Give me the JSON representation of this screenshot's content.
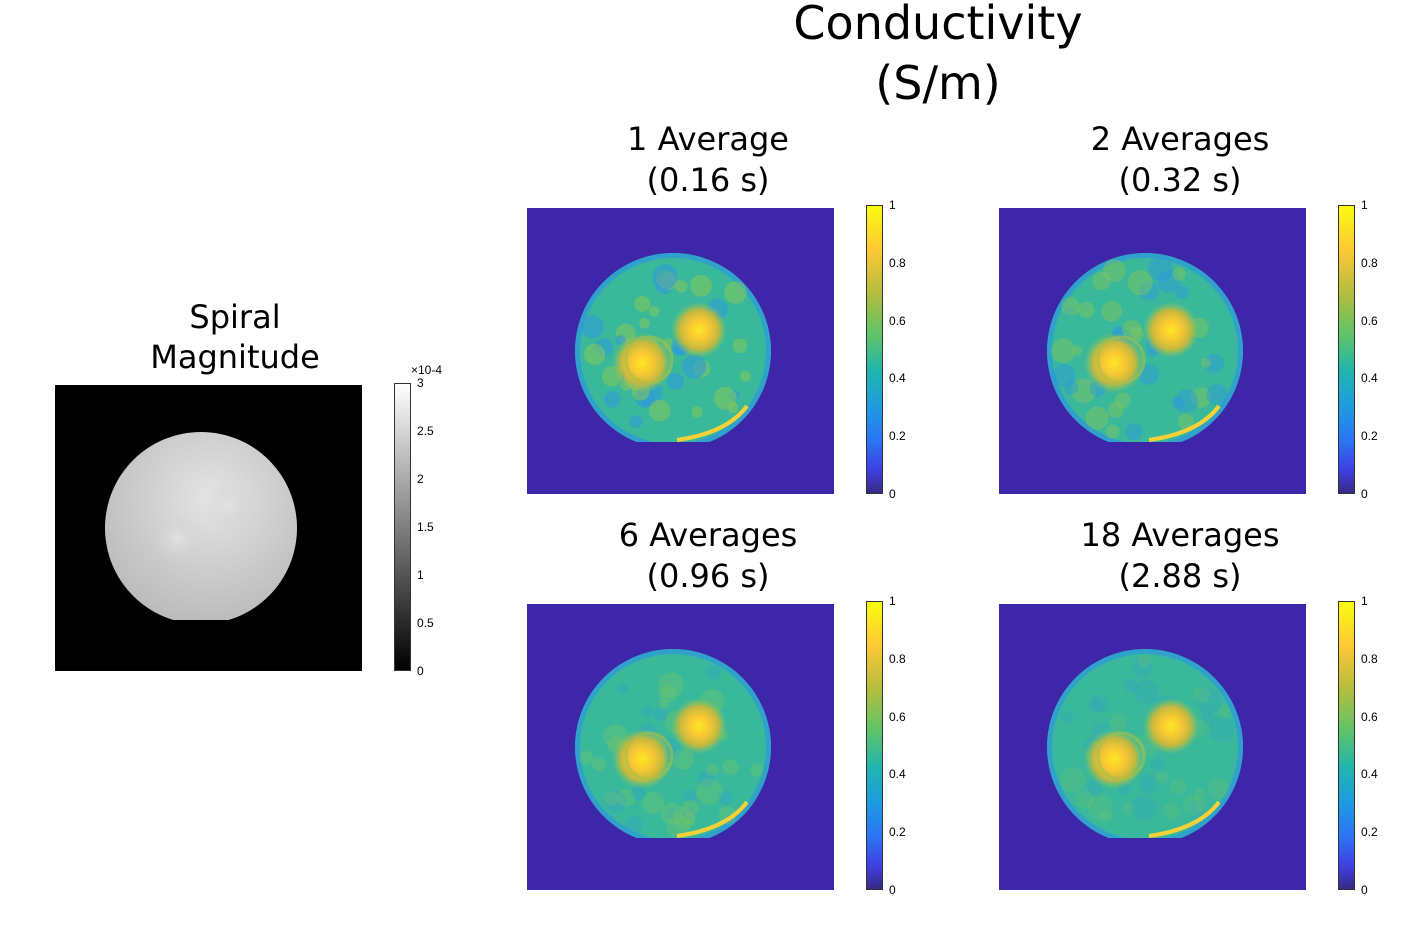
{
  "figure": {
    "title_line1": "Conductivity",
    "title_line2": "(S/m)"
  },
  "magnitude": {
    "title_line1": "Spiral",
    "title_line2": "Magnitude",
    "colormap": "gray",
    "colorbar_exponent": "×10-4",
    "colorbar_ticks": [
      "0",
      "0.5",
      "1",
      "1.5",
      "2",
      "2.5",
      "3"
    ]
  },
  "conductivity_colormap": "parula",
  "conductivity_colorbar_ticks": [
    "0",
    "0.2",
    "0.4",
    "0.6",
    "0.8",
    "1"
  ],
  "panels": [
    {
      "title_line1": "1 Average",
      "title_line2": "(0.16 s)"
    },
    {
      "title_line1": "2 Averages",
      "title_line2": "(0.32 s)"
    },
    {
      "title_line1": "6 Averages",
      "title_line2": "(0.96 s)"
    },
    {
      "title_line1": "18 Averages",
      "title_line2": "(2.88 s)"
    }
  ],
  "colors": {
    "background_blue": "#3e26a8",
    "phantom_green": "#3ab99a",
    "inclusion_yellow": "#f9d033"
  }
}
